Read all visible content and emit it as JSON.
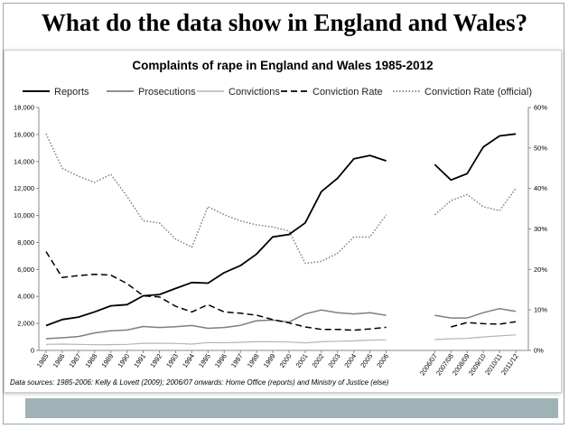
{
  "slide": {
    "title": "What do the data show in England and Wales?"
  },
  "chart_data": {
    "type": "line",
    "title": "Complaints of rape in England and Wales 1985-2012",
    "x": [
      "1985",
      "1986",
      "1987",
      "1988",
      "1989",
      "1990",
      "1991",
      "1992",
      "1993",
      "1994",
      "1995",
      "1996",
      "1997",
      "1998",
      "1999",
      "2000",
      "2001",
      "2002",
      "2003",
      "2004",
      "2005",
      "2006",
      "2006/07",
      "2007/08",
      "2008/09",
      "2009/10",
      "2010/11",
      "2011/12"
    ],
    "y_left_ticks": [
      "0",
      "2,000",
      "4,000",
      "6,000",
      "8,000",
      "10,000",
      "12,000",
      "14,000",
      "16,000",
      "18,000"
    ],
    "y_left_range": [
      0,
      18000
    ],
    "y_right_ticks": [
      "0%",
      "10%",
      "20%",
      "30%",
      "40%",
      "50%",
      "60%"
    ],
    "y_right_range": [
      0,
      60
    ],
    "series": [
      {
        "name": "Reports",
        "axis": "left",
        "style": "solid",
        "color": "#000000",
        "width": 1.8,
        "values": [
          1842,
          2288,
          2471,
          2855,
          3305,
          3391,
          4045,
          4142,
          4589,
          5032,
          4986,
          5759,
          6281,
          7139,
          8409,
          8593,
          9449,
          11766,
          12760,
          14192,
          14449,
          14047,
          13780,
          12630,
          13096,
          15074,
          15892,
          16041
        ]
      },
      {
        "name": "Prosecutions",
        "axis": "left",
        "style": "solid",
        "color": "#7f7f7f",
        "width": 1.5,
        "values": [
          870,
          940,
          1030,
          1300,
          1450,
          1510,
          1770,
          1700,
          1760,
          1850,
          1640,
          1700,
          1860,
          2200,
          2250,
          2100,
          2700,
          3000,
          2800,
          2700,
          2800,
          2600,
          2600,
          2400,
          2400,
          2800,
          3100,
          2900
        ]
      },
      {
        "name": "Convictions",
        "axis": "left",
        "style": "solid",
        "color": "#b5b5b5",
        "width": 1.2,
        "values": [
          450,
          470,
          450,
          420,
          430,
          450,
          530,
          530,
          520,
          470,
          580,
          570,
          600,
          640,
          640,
          620,
          560,
          640,
          680,
          710,
          760,
          790,
          800,
          860,
          900,
          1000,
          1080,
          1150
        ]
      },
      {
        "name": "Conviction Rate",
        "axis": "right",
        "style": "dashed",
        "color": "#000000",
        "width": 1.5,
        "values": [
          24.4,
          18,
          18.5,
          18.8,
          18.6,
          16.5,
          13.5,
          13.2,
          10.9,
          9.5,
          11.3,
          9.5,
          9.2,
          8.7,
          7.6,
          6.8,
          5.8,
          5.2,
          5.2,
          5,
          5.3,
          5.7,
          null,
          5.8,
          6.9,
          6.6,
          6.5,
          7.1
        ]
      },
      {
        "name": "Conviction Rate (official)",
        "axis": "right",
        "style": "dotted",
        "color": "#7f7f7f",
        "width": 1.5,
        "values": [
          53.5,
          45,
          43,
          41.5,
          43.5,
          38,
          32,
          31.5,
          27.5,
          25.5,
          35.5,
          33.5,
          32,
          31,
          30.5,
          29.5,
          21.5,
          22,
          24,
          28,
          28,
          33.5,
          33.5,
          37,
          38.5,
          35.5,
          34.5,
          40
        ]
      }
    ],
    "legend_position": "top",
    "grid": false,
    "source": "Data sources: 1985-2006: Kelly & Lovett (2009); 2006/07 onwards: Home Office (reports) and Ministry of Justice (else)"
  }
}
